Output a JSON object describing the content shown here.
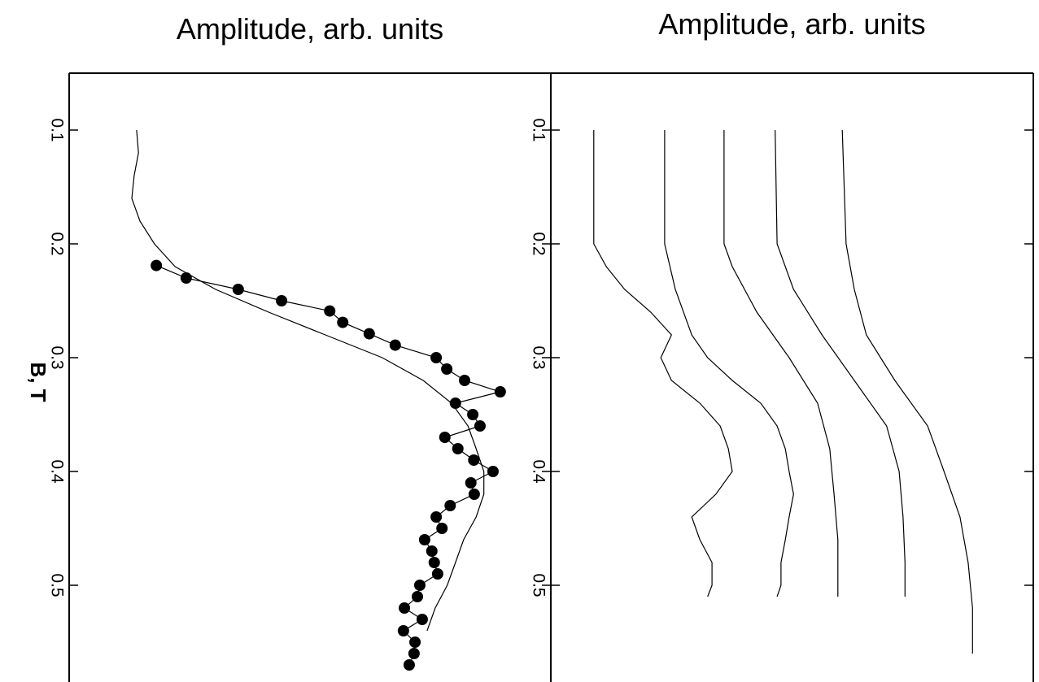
{
  "chart_data": [
    {
      "type": "line",
      "x_label": "Amplitude, arb. units",
      "y_label": "B, T",
      "ylim": [
        0.05,
        0.585
      ],
      "yticks": [
        0.1,
        0.2,
        0.3,
        0.4,
        0.5
      ],
      "xlim": [
        0,
        100
      ],
      "series": [
        {
          "color": "#000000",
          "marker": "circle",
          "y": [
            0.219,
            0.23,
            0.24,
            0.25,
            0.259,
            0.269,
            0.279,
            0.289,
            0.3,
            0.31,
            0.32,
            0.33,
            0.34,
            0.35,
            0.36,
            0.37,
            0.38,
            0.39,
            0.4,
            0.41,
            0.42,
            0.43,
            0.44,
            0.45,
            0.46,
            0.47,
            0.48,
            0.49,
            0.5,
            0.51,
            0.52,
            0.53,
            0.54,
            0.55,
            0.56,
            0.57
          ],
          "values": [
            18.1,
            24.3,
            35.1,
            44.1,
            54.1,
            56.8,
            62.3,
            67.7,
            76.2,
            78.4,
            82.1,
            89.5,
            80.2,
            83.8,
            85.3,
            78.0,
            80.7,
            84.0,
            88.0,
            83.4,
            84.1,
            79.1,
            76.2,
            77.4,
            73.8,
            75.3,
            75.8,
            76.5,
            72.8,
            72.3,
            69.6,
            73.3,
            69.4,
            71.8,
            71.6,
            70.6
          ]
        },
        {
          "color": "#000000",
          "y": [
            0.1,
            0.12,
            0.14,
            0.16,
            0.18,
            0.2,
            0.22,
            0.24,
            0.26,
            0.28,
            0.3,
            0.32,
            0.34,
            0.36,
            0.38,
            0.4,
            0.42,
            0.44,
            0.46,
            0.48,
            0.5,
            0.52,
            0.54
          ],
          "values": [
            14,
            14.4,
            13.5,
            13,
            14.7,
            17.7,
            22,
            30.4,
            41.4,
            53.2,
            65,
            73.5,
            79.4,
            82.8,
            84.5,
            86.1,
            86.1,
            84.5,
            81.9,
            80.2,
            78.5,
            76,
            74.3
          ]
        }
      ]
    },
    {
      "type": "line",
      "x_label": "Amplitude, arb. units",
      "ylim": [
        0.05,
        0.585
      ],
      "yticks": [
        0.1,
        0.2,
        0.3,
        0.4,
        0.5
      ],
      "xlim": [
        0,
        100
      ],
      "series": [
        {
          "color": "#000000",
          "y": [
            0.1,
            0.2,
            0.22,
            0.24,
            0.26,
            0.28,
            0.3,
            0.32,
            0.34,
            0.36,
            0.38,
            0.4,
            0.42,
            0.44,
            0.46,
            0.48,
            0.5,
            0.51
          ],
          "values": [
            8.9,
            8.9,
            11.5,
            15.3,
            20.7,
            25,
            22.8,
            25,
            30.9,
            35.1,
            36.8,
            37.6,
            34.2,
            29.2,
            30.9,
            33.4,
            33.4,
            32.5
          ]
        },
        {
          "color": "#000000",
          "y": [
            0.1,
            0.2,
            0.24,
            0.28,
            0.3,
            0.32,
            0.34,
            0.36,
            0.38,
            0.4,
            0.42,
            0.44,
            0.46,
            0.48,
            0.5,
            0.51
          ],
          "values": [
            23.6,
            23.6,
            25.8,
            29.2,
            32.5,
            37.6,
            43.5,
            46.9,
            48.6,
            49.4,
            50.3,
            49.4,
            48.6,
            47.7,
            47.7,
            46.9
          ]
        },
        {
          "color": "#000000",
          "y": [
            0.1,
            0.2,
            0.22,
            0.26,
            0.3,
            0.34,
            0.38,
            0.42,
            0.46,
            0.51
          ],
          "values": [
            35.9,
            35.9,
            37.6,
            42.7,
            49.4,
            55.3,
            57.8,
            58.7,
            59.5,
            59.5
          ]
        },
        {
          "color": "#000000",
          "y": [
            0.1,
            0.2,
            0.24,
            0.28,
            0.32,
            0.36,
            0.4,
            0.44,
            0.48,
            0.51
          ],
          "values": [
            46.5,
            46.9,
            50.3,
            56.2,
            62.9,
            69.6,
            72.2,
            73,
            73.4,
            73.4
          ]
        },
        {
          "color": "#000000",
          "y": [
            0.1,
            0.2,
            0.24,
            0.28,
            0.32,
            0.36,
            0.4,
            0.44,
            0.48,
            0.52,
            0.56
          ],
          "values": [
            60.4,
            61.2,
            62.9,
            65.4,
            71.3,
            78.1,
            81.5,
            84.8,
            86.5,
            87.4,
            87.4
          ]
        }
      ]
    }
  ]
}
